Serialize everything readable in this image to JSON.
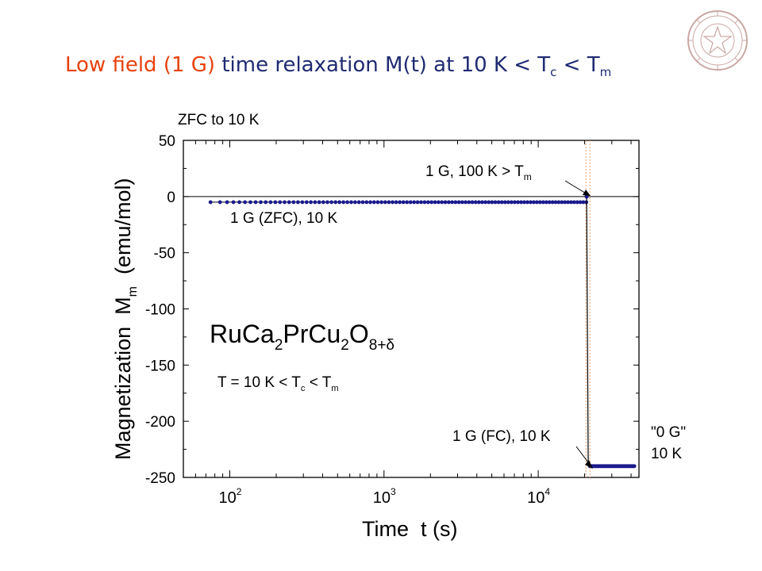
{
  "title": {
    "part1": "Low field (1 G)",
    "part2": " time relaxation M(t) at 10 K < T",
    "sub1": "c",
    "part3": " < T",
    "sub2": "m"
  },
  "colors": {
    "title_accent": "#e8420e",
    "title_main": "#1f2a72",
    "data": "#1a1a8c",
    "marker_line": "#e8a070"
  },
  "logo": {
    "name": "university-seal-icon"
  },
  "chart_data": {
    "type": "scatter",
    "xscale": "log",
    "xlim": [
      50,
      45000
    ],
    "ylim": [
      -250,
      50
    ],
    "xticks": [
      100,
      1000,
      10000
    ],
    "xtick_labels": [
      {
        "base": "10",
        "exp": "2"
      },
      {
        "base": "10",
        "exp": "3"
      },
      {
        "base": "10",
        "exp": "4"
      }
    ],
    "yticks": [
      50,
      0,
      -50,
      -100,
      -150,
      -200,
      -250
    ],
    "xlabel": "Time  t (s)",
    "ylabel": {
      "main": "Magnetization  M",
      "sub": "m",
      "unit": "  (emu/mol)"
    },
    "reference_line": {
      "y": 0
    },
    "field_switch_time": 21000,
    "series": [
      {
        "label": "zfc",
        "x_start": 75,
        "x_end": 20500,
        "y": -5,
        "points": 100
      },
      {
        "label": "transition",
        "x": [
          20600,
          21100
        ],
        "y": [
          0,
          -240
        ]
      },
      {
        "label": "fc",
        "x_start": 21600,
        "x_end": 42000,
        "y": -240,
        "points": 55
      }
    ],
    "annotations": {
      "zfc_header": "ZFC to 10 K",
      "zfc_label": "1 G (ZFC), 10 K",
      "fc_label": "1 G (FC), 10 K",
      "high_t_pre": "1 G, 100 K > T",
      "high_t_sub": "m",
      "zero_g_line1": "\"0 G\"",
      "zero_g_line2": "10 K"
    },
    "compound": {
      "p1": "RuCa",
      "s1": "2",
      "p2": "PrCu",
      "s2": "2",
      "p3": "O",
      "s3": "8+δ"
    },
    "condition": {
      "p1": "T = 10 K < T",
      "s1": "c",
      "p2": " < T",
      "s2": "m"
    }
  }
}
